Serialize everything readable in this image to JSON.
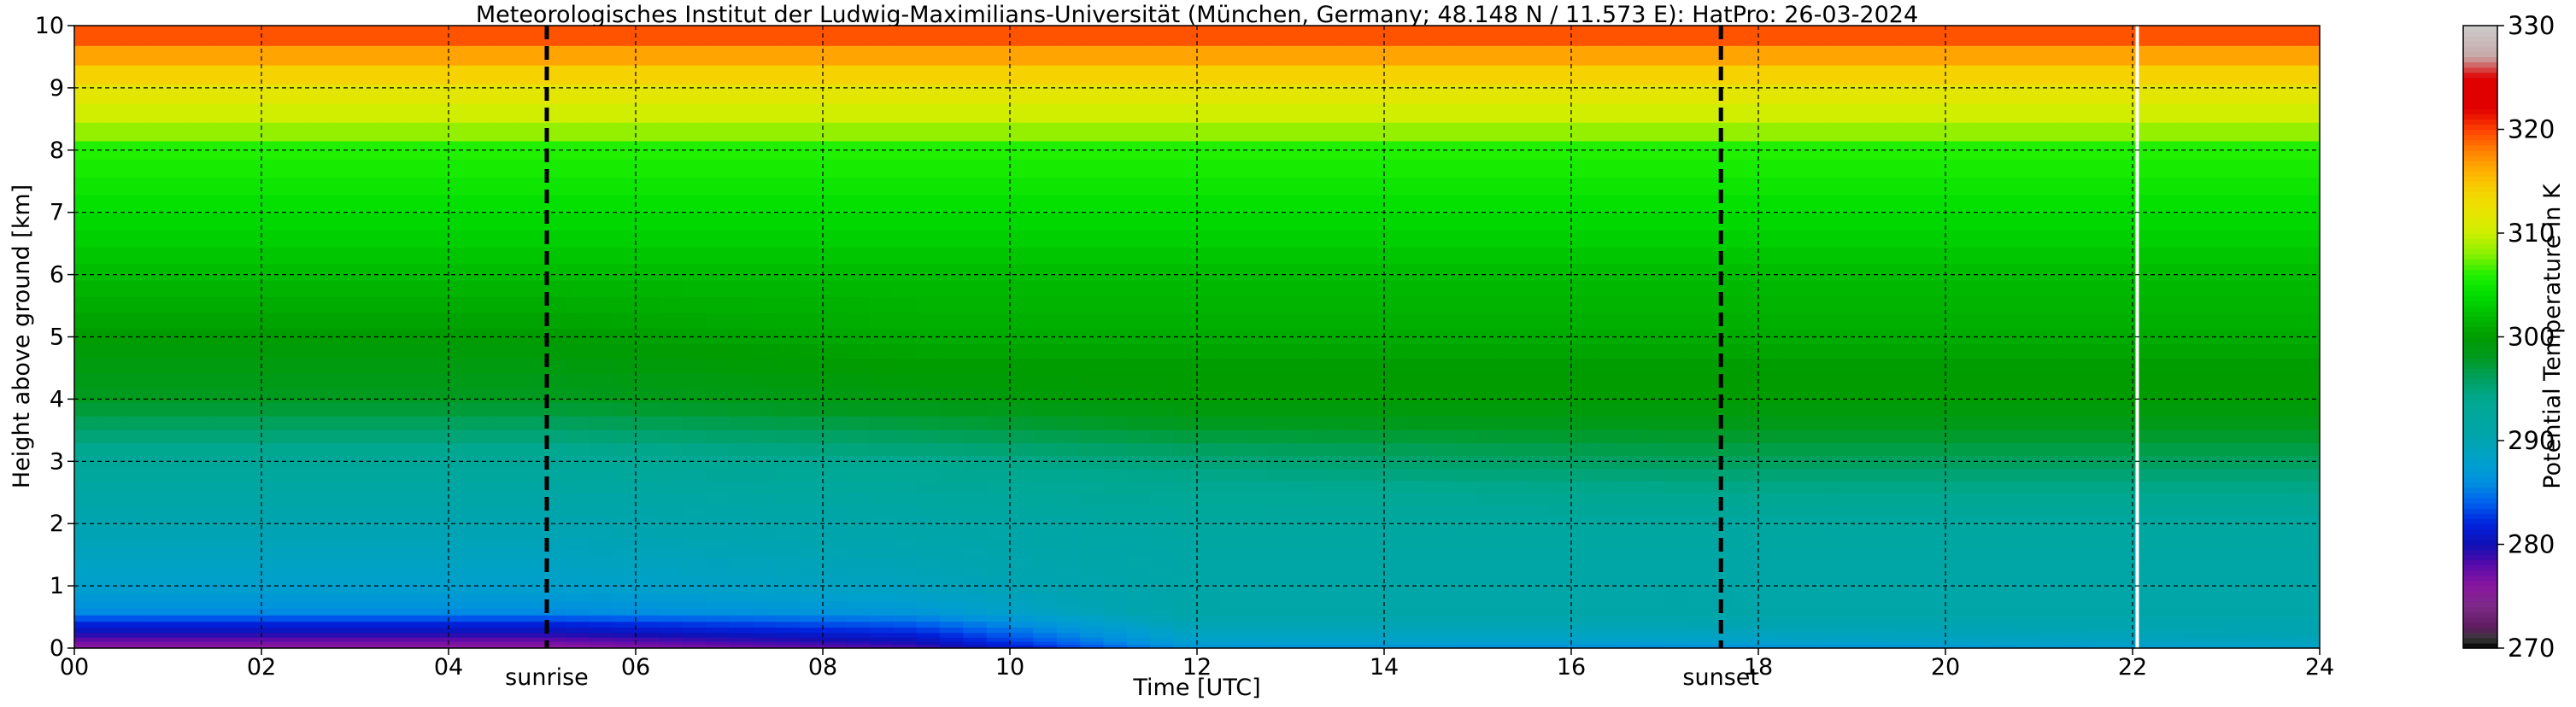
{
  "chart_data": {
    "type": "heatmap",
    "title": "Meteorologisches Institut der Ludwig-Maximilians-Universität (München, Germany; 48.148 N / 11.573 E):    HatPro: 26-03-2024",
    "xlabel": "Time [UTC]",
    "ylabel": "Height above ground [km]",
    "colorbar_label": "Potential Temperature in K",
    "xlim": [
      0,
      24
    ],
    "ylim": [
      0,
      10
    ],
    "clim": [
      270,
      330
    ],
    "x_ticks": [
      0,
      2,
      4,
      6,
      8,
      10,
      12,
      14,
      16,
      18,
      20,
      22,
      24
    ],
    "x_tick_labels": [
      "00",
      "02",
      "04",
      "06",
      "08",
      "10",
      "12",
      "14",
      "16",
      "18",
      "20",
      "22",
      "24"
    ],
    "y_ticks": [
      0,
      1,
      2,
      3,
      4,
      5,
      6,
      7,
      8,
      9,
      10
    ],
    "y_tick_labels": [
      "0",
      "1",
      "2",
      "3",
      "4",
      "5",
      "6",
      "7",
      "8",
      "9",
      "10"
    ],
    "colorbar_ticks": [
      270,
      280,
      290,
      300,
      310,
      320,
      330
    ],
    "colorbar_tick_labels": [
      "270",
      "280",
      "290",
      "300",
      "310",
      "320",
      "330"
    ],
    "grid": true,
    "events": [
      {
        "label": "sunrise",
        "time": 5.05
      },
      {
        "label": "sunset",
        "time": 17.6
      }
    ],
    "data_gap_time": 22.05,
    "colormap": [
      {
        "value": 270,
        "color": "#000000"
      },
      {
        "value": 271,
        "color": "#3a3a3a"
      },
      {
        "value": 272,
        "color": "#5e1a5e"
      },
      {
        "value": 274,
        "color": "#7c2a86"
      },
      {
        "value": 276,
        "color": "#8a16a0"
      },
      {
        "value": 278,
        "color": "#5a0aaa"
      },
      {
        "value": 280,
        "color": "#1010b4"
      },
      {
        "value": 282,
        "color": "#0022dc"
      },
      {
        "value": 284,
        "color": "#0060ee"
      },
      {
        "value": 286,
        "color": "#0090e0"
      },
      {
        "value": 288,
        "color": "#00a0cc"
      },
      {
        "value": 290,
        "color": "#00a4b0"
      },
      {
        "value": 292,
        "color": "#00a7a0"
      },
      {
        "value": 294,
        "color": "#00a890"
      },
      {
        "value": 296,
        "color": "#00a060"
      },
      {
        "value": 298,
        "color": "#009a20"
      },
      {
        "value": 300,
        "color": "#009c00"
      },
      {
        "value": 302,
        "color": "#00bb00"
      },
      {
        "value": 304,
        "color": "#00dd00"
      },
      {
        "value": 306,
        "color": "#20f000"
      },
      {
        "value": 308,
        "color": "#88f000"
      },
      {
        "value": 310,
        "color": "#ccf000"
      },
      {
        "value": 312,
        "color": "#e8e400"
      },
      {
        "value": 314,
        "color": "#f4d400"
      },
      {
        "value": 316,
        "color": "#ffb000"
      },
      {
        "value": 318,
        "color": "#ff8000"
      },
      {
        "value": 320,
        "color": "#ff4000"
      },
      {
        "value": 322,
        "color": "#e00000"
      },
      {
        "value": 325,
        "color": "#e00000"
      },
      {
        "value": 327,
        "color": "#c8a8a8"
      },
      {
        "value": 330,
        "color": "#cccccc"
      }
    ],
    "profiles": [
      {
        "time": 0,
        "h": [
          0,
          0.1,
          0.25,
          0.4,
          0.6,
          1.0,
          2.0,
          3.0,
          4.0,
          4.5,
          5.0,
          6.0,
          7.0,
          7.5,
          8.0,
          8.5,
          9.0,
          9.3,
          9.6,
          9.8,
          10.0
        ],
        "t": [
          275,
          277,
          280,
          282,
          286,
          288,
          290,
          293,
          298,
          299,
          300,
          302,
          304,
          305,
          306,
          310,
          312,
          315,
          317,
          319,
          321
        ]
      },
      {
        "time": 5,
        "h": [
          0,
          0.1,
          0.25,
          0.4,
          0.6,
          1.0,
          2.0,
          3.0,
          4.0,
          4.5,
          5.0,
          6.0,
          7.0,
          7.5,
          8.0,
          8.5,
          9.0,
          9.3,
          9.6,
          9.8,
          10.0
        ],
        "t": [
          275,
          277,
          280,
          282,
          286,
          288,
          290,
          293,
          298,
          299,
          300,
          302,
          304,
          305,
          306,
          310,
          312,
          315,
          317,
          319,
          321
        ]
      },
      {
        "time": 9,
        "h": [
          0,
          0.1,
          0.25,
          0.4,
          0.6,
          1.0,
          2.0,
          3.0,
          4.0,
          4.5,
          5.0,
          6.0,
          7.0,
          7.5,
          8.0,
          8.5,
          9.0,
          9.3,
          9.6,
          9.8,
          10.0
        ],
        "t": [
          278,
          280,
          282,
          284,
          287,
          289,
          291,
          294,
          299,
          300,
          301,
          302,
          304,
          305,
          306,
          310,
          312,
          315,
          317,
          319,
          321
        ]
      },
      {
        "time": 12,
        "h": [
          0,
          0.1,
          0.25,
          0.4,
          0.6,
          1.0,
          2.0,
          3.0,
          4.0,
          4.5,
          5.0,
          6.0,
          7.0,
          7.5,
          8.0,
          8.5,
          9.0,
          9.3,
          9.6,
          9.8,
          10.0
        ],
        "t": [
          286,
          288,
          289,
          290,
          291,
          291,
          292,
          295,
          300,
          300,
          301,
          302,
          304,
          305,
          306,
          310,
          312,
          315,
          317,
          319,
          321
        ]
      },
      {
        "time": 17,
        "h": [
          0,
          0.1,
          0.25,
          0.4,
          0.6,
          1.0,
          2.0,
          3.0,
          4.0,
          4.5,
          5.0,
          6.0,
          7.0,
          7.5,
          8.0,
          8.5,
          9.0,
          9.3,
          9.6,
          9.8,
          10.0
        ],
        "t": [
          285,
          288,
          289,
          290,
          291,
          291,
          292,
          296,
          300,
          300,
          301,
          302,
          304,
          305,
          306,
          310,
          312,
          315,
          317,
          319,
          321
        ]
      },
      {
        "time": 24,
        "h": [
          0,
          0.1,
          0.25,
          0.4,
          0.6,
          1.0,
          2.0,
          3.0,
          4.0,
          4.5,
          5.0,
          6.0,
          7.0,
          7.5,
          8.0,
          8.5,
          9.0,
          9.3,
          9.6,
          9.8,
          10.0
        ],
        "t": [
          288,
          289,
          290,
          290,
          291,
          291,
          292,
          296,
          300,
          300,
          301,
          302,
          304,
          305,
          306,
          310,
          312,
          315,
          317,
          319,
          321
        ]
      }
    ]
  }
}
